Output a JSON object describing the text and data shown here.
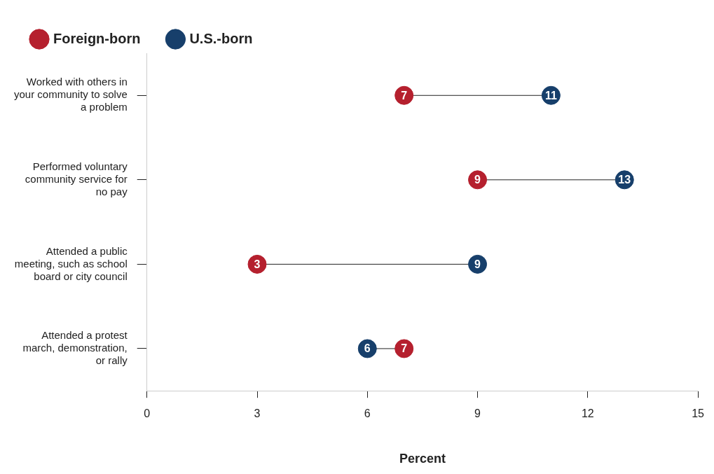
{
  "chart_data": {
    "type": "scatter",
    "orientation": "horizontal",
    "categories": [
      "Worked with others in your community to solve a problem",
      "Performed voluntary community service for no pay",
      "Attended a public meeting, such as school board or city council",
      "Attended a protest march, demonstration, or rally"
    ],
    "series": [
      {
        "name": "Foreign-born",
        "color": "#b5202e",
        "values": [
          7,
          9,
          3,
          7
        ]
      },
      {
        "name": "U.S.-born",
        "color": "#173f6b",
        "values": [
          11,
          13,
          9,
          6
        ]
      }
    ],
    "xlabel": "Percent",
    "xlim": [
      0,
      15
    ],
    "xticks": [
      0,
      3,
      6,
      9,
      12,
      15
    ],
    "legend": "top left",
    "data_labels": true,
    "marker": "circle",
    "grid": false
  }
}
